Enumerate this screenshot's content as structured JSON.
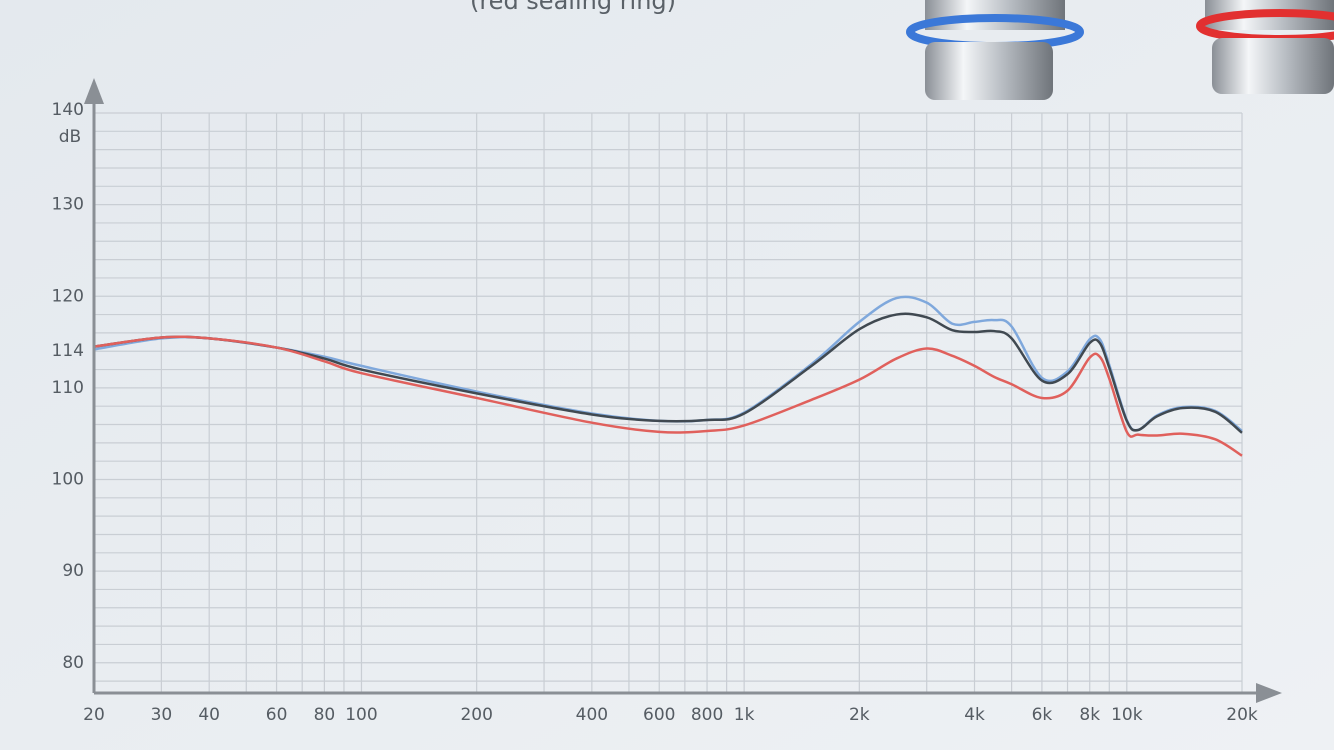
{
  "chart_data": {
    "type": "line",
    "subtitle": "(red sealing ring)",
    "y_label": "dB",
    "x": [
      20,
      30,
      40,
      60,
      80,
      100,
      200,
      400,
      600,
      800,
      1000,
      1500,
      2000,
      2500,
      3000,
      3500,
      4000,
      4500,
      5000,
      6000,
      7000,
      8000,
      8500,
      9000,
      10000,
      10700,
      12000,
      14000,
      17000,
      20000
    ],
    "series": [
      {
        "color": "#7fa8dc",
        "values": [
          114.2,
          115.4,
          115.4,
          114.4,
          113.4,
          112.4,
          109.6,
          107.2,
          106.4,
          106.5,
          107.3,
          112.6,
          117.2,
          119.8,
          119.3,
          117.0,
          117.2,
          117.4,
          116.7,
          111.1,
          111.8,
          115.3,
          115.3,
          112.5,
          106.5,
          105.4,
          107.0,
          107.9,
          107.5,
          105.3
        ]
      },
      {
        "color": "#404951",
        "values": [
          114.5,
          115.5,
          115.4,
          114.4,
          113.2,
          112.0,
          109.4,
          107.1,
          106.4,
          106.5,
          107.2,
          112.4,
          116.4,
          118.0,
          117.7,
          116.3,
          116.1,
          116.2,
          115.4,
          110.8,
          111.5,
          114.9,
          114.9,
          112.2,
          106.4,
          105.4,
          106.9,
          107.8,
          107.4,
          105.1
        ]
      },
      {
        "color": "#e0605c",
        "values": [
          114.5,
          115.5,
          115.4,
          114.4,
          112.9,
          111.6,
          108.9,
          106.2,
          105.2,
          105.3,
          105.9,
          108.7,
          110.9,
          113.2,
          114.3,
          113.5,
          112.4,
          111.2,
          110.4,
          108.9,
          109.7,
          113.3,
          113.4,
          111.0,
          105.2,
          104.9,
          104.8,
          105.0,
          104.4,
          102.6
        ]
      }
    ],
    "xlim": [
      20,
      20000
    ],
    "log_x": true,
    "xticks": [
      20,
      30,
      40,
      60,
      80,
      100,
      200,
      400,
      600,
      800,
      {
        "value": 1000,
        "label": "1k"
      },
      {
        "value": 2000,
        "label": "2k"
      },
      {
        "value": 4000,
        "label": "4k"
      },
      {
        "value": 6000,
        "label": "6k"
      },
      {
        "value": 8000,
        "label": "8k"
      },
      {
        "value": 10000,
        "label": "10k"
      },
      {
        "value": 20000,
        "label": "20k"
      }
    ],
    "xgrid": [
      20,
      30,
      40,
      50,
      60,
      70,
      80,
      90,
      100,
      200,
      300,
      400,
      500,
      600,
      700,
      800,
      900,
      1000,
      2000,
      3000,
      4000,
      5000,
      6000,
      7000,
      8000,
      9000,
      10000,
      20000
    ],
    "ylim": [
      76.7,
      140
    ],
    "yticks": [
      80,
      90,
      100,
      110,
      114,
      120,
      130,
      140
    ],
    "ygrid": [
      78,
      80,
      82,
      84,
      86,
      88,
      90,
      92,
      94,
      96,
      98,
      100,
      102,
      104,
      106,
      108,
      110,
      112,
      114,
      116,
      118,
      120,
      122,
      124,
      126,
      128,
      130,
      132,
      134,
      136,
      138,
      140
    ],
    "grid": true
  }
}
